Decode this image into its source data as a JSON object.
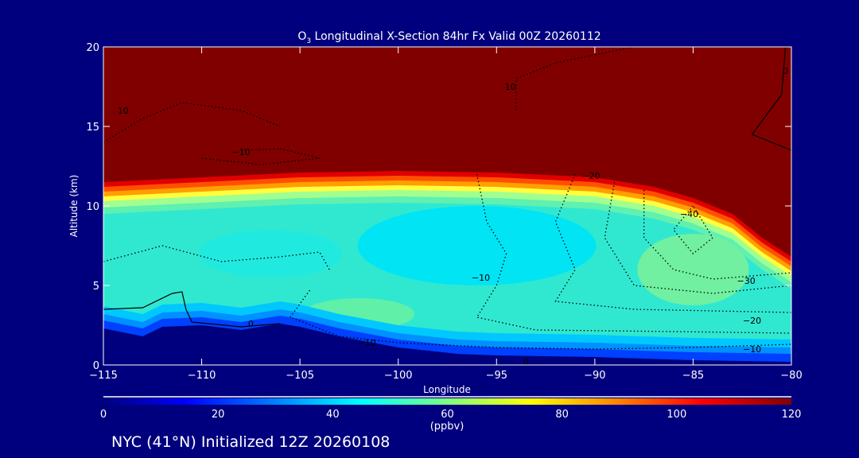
{
  "chart_data": {
    "type": "heatmap",
    "title": "O3 Longitudinal X-Section 84hr  Fx Valid 00Z 20260112",
    "title_main": "O",
    "title_sub": "3",
    "title_rest": " Longitudinal X-Section 84hr  Fx Valid 00Z 20260112",
    "xlabel": "Longitude",
    "ylabel": "Altitude (km)",
    "xlim": [
      -115,
      -80
    ],
    "ylim": [
      0,
      20
    ],
    "xticks": [
      -115,
      -110,
      -105,
      -100,
      -95,
      -90,
      -85,
      -80
    ],
    "xtick_labels": [
      "−115",
      "−110",
      "−105",
      "−100",
      "−95",
      "−90",
      "−85",
      "−80"
    ],
    "yticks": [
      0,
      5,
      10,
      15,
      20
    ],
    "ytick_labels": [
      "0",
      "5",
      "10",
      "15",
      "20"
    ],
    "colorbar": {
      "label": "(ppbv)",
      "range": [
        0,
        120
      ],
      "ticks": [
        "0",
        "20",
        "40",
        "60",
        "80",
        "100",
        "120"
      ]
    },
    "tropopause_ozone_boundary": [
      [
        -115,
        11.5
      ],
      [
        -110,
        11.8
      ],
      [
        -105,
        12.1
      ],
      [
        -100,
        12.2
      ],
      [
        -95,
        12.1
      ],
      [
        -90,
        11.8
      ],
      [
        -87,
        11.2
      ],
      [
        -85,
        10.5
      ],
      [
        -83,
        9.5
      ],
      [
        -81.5,
        8
      ],
      [
        -80,
        6.8
      ]
    ],
    "terrain": [
      [
        -115,
        2.3
      ],
      [
        -113,
        1.8
      ],
      [
        -112,
        2.4
      ],
      [
        -110,
        2.5
      ],
      [
        -108,
        2.2
      ],
      [
        -106,
        2.6
      ],
      [
        -105,
        2.4
      ],
      [
        -103,
        1.8
      ],
      [
        -100,
        1.1
      ],
      [
        -97,
        0.7
      ],
      [
        -95,
        0.6
      ],
      [
        -90,
        0.5
      ],
      [
        -85,
        0.3
      ],
      [
        -80,
        0.2
      ]
    ],
    "contour_labels": [
      {
        "text": "10",
        "lon": -114,
        "alt": 16
      },
      {
        "text": "−10",
        "lon": -108,
        "alt": 13.4
      },
      {
        "text": "10",
        "lon": -94.3,
        "alt": 17.5
      },
      {
        "text": "−20",
        "lon": -90.2,
        "alt": 11.9
      },
      {
        "text": "−40",
        "lon": -85.2,
        "alt": 9.5
      },
      {
        "text": "−30",
        "lon": -82.3,
        "alt": 5.3
      },
      {
        "text": "−20",
        "lon": -82,
        "alt": 2.8
      },
      {
        "text": "−10",
        "lon": -82,
        "alt": 1
      },
      {
        "text": "−10",
        "lon": -95.8,
        "alt": 5.5
      },
      {
        "text": "−10",
        "lon": -101.6,
        "alt": 1.4
      },
      {
        "text": "0",
        "lon": -107.5,
        "alt": 2.6
      },
      {
        "text": "0",
        "lon": -93.5,
        "alt": 0.2
      },
      {
        "text": "0",
        "lon": -80.3,
        "alt": 18.5
      }
    ]
  },
  "footer": {
    "text": "NYC (41°N) Initialized 12Z 20260108"
  },
  "colors": {
    "background": "#00007f",
    "stratosphere": "#800000",
    "mid": "#30e8d0"
  }
}
